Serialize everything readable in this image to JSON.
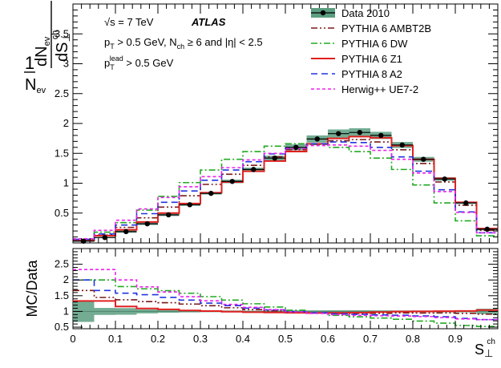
{
  "chart_data": [
    {
      "type": "line",
      "subtype": "histogram-steps",
      "title": "",
      "ylabel": {
        "numerator": "dN",
        "numerator_sub": "ev",
        "ds": "dS",
        "ds_sup": "ch",
        "ds_sub": "⊥",
        "prefix": "1",
        "denominator": "N",
        "denominator_sub": "ev"
      },
      "xlim": [
        0,
        1
      ],
      "ylim": [
        0,
        4
      ],
      "yticks": [
        "0.5",
        "1",
        "1.5",
        "2",
        "2.5",
        "3",
        "3.5"
      ],
      "annotations": {
        "energy": "√s = 7 TeV",
        "experiment": "ATLAS",
        "cuts_line1": "p",
        "cuts_line1_sub": "T",
        "cuts_line1_rest": " > 0.5 GeV, N",
        "cuts_line1_sub2": "ch",
        "cuts_line1_rest2": " ≥ 6 and |η| < 2.5",
        "cuts_line2": "p",
        "cuts_line2_sub": "T",
        "cuts_line2_sup": "lead",
        "cuts_line2_rest": " > 0.5 GeV"
      },
      "bin_edges": [
        0,
        0.05,
        0.1,
        0.15,
        0.2,
        0.25,
        0.3,
        0.35,
        0.4,
        0.45,
        0.5,
        0.55,
        0.6,
        0.65,
        0.7,
        0.75,
        0.8,
        0.85,
        0.9,
        0.95,
        1.0
      ],
      "data": {
        "name": "Data 2010",
        "color": "#000000",
        "band_color": "#5b9e80",
        "values": [
          0.03,
          0.09,
          0.19,
          0.32,
          0.47,
          0.64,
          0.83,
          1.03,
          1.23,
          1.42,
          1.6,
          1.74,
          1.83,
          1.85,
          1.8,
          1.64,
          1.4,
          1.07,
          0.67,
          0.23
        ],
        "errors": [
          0.01,
          0.01,
          0.02,
          0.02,
          0.02,
          0.02,
          0.02,
          0.03,
          0.03,
          0.04,
          0.05,
          0.06,
          0.07,
          0.07,
          0.06,
          0.05,
          0.04,
          0.03,
          0.02,
          0.02
        ]
      },
      "series": [
        {
          "name": "PYTHIA 6 AMBT2B",
          "color": "#7a1a1a",
          "dash": "8,3,2,3,2,3",
          "values": [
            0.05,
            0.13,
            0.26,
            0.42,
            0.6,
            0.79,
            0.98,
            1.15,
            1.3,
            1.44,
            1.56,
            1.65,
            1.71,
            1.73,
            1.69,
            1.56,
            1.33,
            1.02,
            0.63,
            0.21
          ]
        },
        {
          "name": "PYTHIA 6 DW",
          "color": "#22aa22",
          "dash": "8,3,2,3",
          "values": [
            0.06,
            0.18,
            0.34,
            0.55,
            0.78,
            1.01,
            1.22,
            1.4,
            1.53,
            1.62,
            1.66,
            1.65,
            1.6,
            1.53,
            1.42,
            1.23,
            0.97,
            0.67,
            0.37,
            0.12
          ]
        },
        {
          "name": "PYTHIA 6 Z1",
          "color": "#e02020",
          "dash": "",
          "values": [
            0.04,
            0.12,
            0.22,
            0.35,
            0.5,
            0.66,
            0.84,
            1.02,
            1.2,
            1.37,
            1.53,
            1.66,
            1.75,
            1.78,
            1.76,
            1.63,
            1.4,
            1.08,
            0.68,
            0.24
          ]
        },
        {
          "name": "PYTHIA 8 A2",
          "color": "#2233dd",
          "dash": "8,5",
          "values": [
            0.06,
            0.15,
            0.3,
            0.49,
            0.68,
            0.87,
            1.05,
            1.22,
            1.36,
            1.49,
            1.59,
            1.66,
            1.69,
            1.68,
            1.6,
            1.44,
            1.2,
            0.89,
            0.52,
            0.17
          ]
        },
        {
          "name": "Herwig++ UE7-2",
          "color": "#ee22ee",
          "dash": "4,3",
          "values": [
            0.07,
            0.21,
            0.38,
            0.57,
            0.76,
            0.94,
            1.11,
            1.26,
            1.39,
            1.5,
            1.58,
            1.63,
            1.64,
            1.62,
            1.55,
            1.4,
            1.17,
            0.86,
            0.51,
            0.17
          ]
        }
      ],
      "legend_position": "top-right"
    },
    {
      "type": "line",
      "subtype": "ratio",
      "ylabel": "MC/Data",
      "xlabel": {
        "base": "S",
        "sub": "⊥",
        "sup": "ch"
      },
      "xlim": [
        0,
        1
      ],
      "ylim": [
        0.45,
        3.0
      ],
      "xticks": [
        "0",
        "0.1",
        "0.2",
        "0.3",
        "0.4",
        "0.5",
        "0.6",
        "0.7",
        "0.8",
        "0.9"
      ],
      "yticks": [
        "0.5",
        "1",
        "1.5",
        "2",
        "2.5"
      ]
    }
  ]
}
